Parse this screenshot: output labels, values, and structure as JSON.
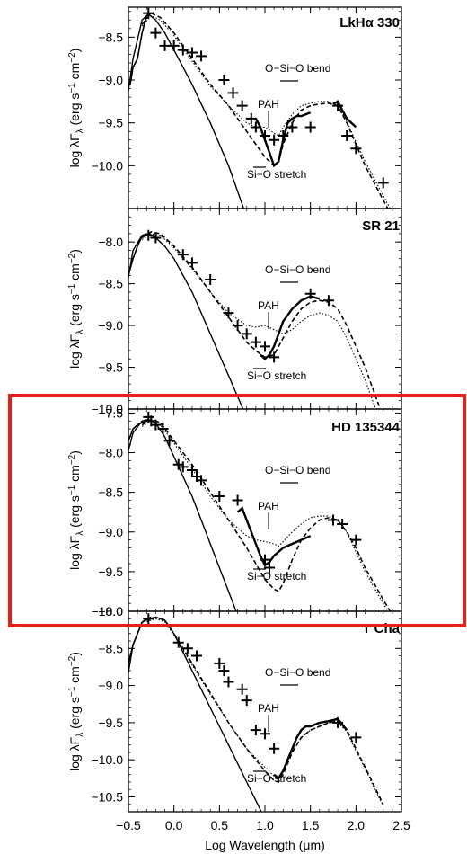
{
  "figure": {
    "x_axis_label": "Log Wavelength (μm)",
    "y_axis_label": "log λF",
    "y_axis_label_sub": "λ",
    "y_axis_label_units": "(erg s",
    "y_axis_label_units2": "cm",
    "y_axis_label_close": ")",
    "highlight_color": "#e8201c"
  },
  "chart_data": [
    {
      "type": "line",
      "title": "LkHα 330",
      "xlim": [
        -0.5,
        2.5
      ],
      "ylim": [
        -10.5,
        -8.15
      ],
      "yticks": [
        "-8.5",
        "-9.0",
        "-9.5",
        "-10.0"
      ],
      "annotations": [
        "O−Si−O bend",
        "PAH",
        "Si−O stretch"
      ],
      "stellar_photosphere": {
        "x": [
          -0.55,
          -0.45,
          -0.35,
          -0.28,
          -0.2,
          -0.1,
          0.0,
          0.1,
          0.2,
          0.3,
          0.4,
          0.5,
          0.6,
          0.7,
          0.8,
          0.9
        ],
        "y": [
          -9.5,
          -8.75,
          -8.3,
          -8.23,
          -8.3,
          -8.45,
          -8.65,
          -8.85,
          -9.05,
          -9.28,
          -9.5,
          -9.75,
          -10.0,
          -10.3,
          -10.6,
          -10.9
        ]
      },
      "spectrum": {
        "x": [
          -0.55,
          -0.52,
          -0.48,
          -0.45,
          -0.4,
          -0.35,
          -0.3,
          -0.25
        ],
        "y": [
          -9.4,
          -9.05,
          -9.05,
          -8.85,
          -8.75,
          -8.45,
          -8.25,
          -8.22
        ]
      },
      "irs_spectrum": {
        "x": [
          0.9,
          0.95,
          1.0,
          1.05,
          1.1,
          1.15,
          1.2,
          1.25,
          1.3,
          1.35,
          1.4,
          1.45,
          1.5
        ],
        "y": [
          -9.45,
          -9.55,
          -9.7,
          -9.85,
          -10.0,
          -9.95,
          -9.7,
          -9.5,
          -9.45,
          -9.42,
          -9.42,
          -9.4,
          -9.38
        ]
      },
      "irs_spectrum_long": {
        "x": [
          1.75,
          1.8,
          1.85,
          1.9,
          1.95,
          2.0
        ],
        "y": [
          -9.28,
          -9.25,
          -9.35,
          -9.45,
          -9.5,
          -9.55
        ]
      },
      "model_dashed": {
        "x": [
          -0.35,
          -0.25,
          -0.15,
          0.0,
          0.2,
          0.4,
          0.6,
          0.8,
          0.9,
          1.0,
          1.1,
          1.15,
          1.2,
          1.3,
          1.4,
          1.5,
          1.6,
          1.7,
          1.8,
          1.9,
          2.0,
          2.1,
          2.2,
          2.3,
          2.4
        ],
        "y": [
          -8.35,
          -8.22,
          -8.27,
          -8.45,
          -8.75,
          -9.05,
          -9.3,
          -9.6,
          -9.75,
          -9.9,
          -10.0,
          -9.95,
          -9.75,
          -9.5,
          -9.35,
          -9.3,
          -9.28,
          -9.27,
          -9.3,
          -9.5,
          -9.75,
          -10.0,
          -10.2,
          -10.4,
          -10.6
        ]
      },
      "model_dotted": {
        "x": [
          -0.35,
          -0.25,
          -0.15,
          0.0,
          0.2,
          0.4,
          0.6,
          0.8,
          0.9,
          1.0,
          1.1,
          1.15,
          1.2,
          1.3,
          1.4,
          1.5,
          1.6,
          1.7,
          1.8,
          1.9,
          2.0,
          2.1,
          2.2,
          2.3,
          2.4
        ],
        "y": [
          -8.37,
          -8.25,
          -8.3,
          -8.48,
          -8.78,
          -9.07,
          -9.3,
          -9.5,
          -9.55,
          -9.55,
          -9.62,
          -9.65,
          -9.55,
          -9.4,
          -9.3,
          -9.27,
          -9.25,
          -9.25,
          -9.3,
          -9.48,
          -9.72,
          -9.95,
          -10.15,
          -10.35,
          -10.55
        ]
      },
      "photometry": {
        "x": [
          -0.28,
          -0.2,
          -0.1,
          0.0,
          0.1,
          0.2,
          0.3,
          0.55,
          0.65,
          0.75,
          0.85,
          0.9,
          1.0,
          1.1,
          1.2,
          1.3,
          1.5,
          1.8,
          1.9,
          2.0,
          2.3
        ],
        "y": [
          -8.22,
          -8.45,
          -8.6,
          -8.6,
          -8.65,
          -8.68,
          -8.72,
          -9.0,
          -9.15,
          -9.3,
          -9.45,
          -9.55,
          -9.65,
          -9.7,
          -9.65,
          -9.55,
          -9.55,
          -9.3,
          -9.65,
          -9.8,
          -10.2
        ]
      }
    },
    {
      "type": "line",
      "title": "SR 21",
      "xlim": [
        -0.5,
        2.5
      ],
      "ylim": [
        -10.0,
        -7.6
      ],
      "yticks": [
        "-8.0",
        "-8.5",
        "-9.0",
        "-9.5",
        "-10.0"
      ],
      "annotations": [
        "O−Si−O bend",
        "PAH",
        "Si−O stretch"
      ],
      "stellar_photosphere": {
        "x": [
          -0.55,
          -0.45,
          -0.35,
          -0.28,
          -0.2,
          -0.1,
          0.0,
          0.1,
          0.2,
          0.3,
          0.4,
          0.5,
          0.6,
          0.7,
          0.8,
          0.9
        ],
        "y": [
          -8.75,
          -8.1,
          -7.92,
          -7.9,
          -7.95,
          -8.05,
          -8.2,
          -8.4,
          -8.6,
          -8.85,
          -9.1,
          -9.35,
          -9.6,
          -9.85,
          -10.1,
          -10.4
        ]
      },
      "spectrum": {
        "x": [
          -0.55,
          -0.5,
          -0.45,
          -0.4,
          -0.35,
          -0.3
        ],
        "y": [
          -8.6,
          -8.4,
          -8.2,
          -8.05,
          -7.93,
          -7.9
        ]
      },
      "irs_spectrum": {
        "x": [
          0.95,
          1.0,
          1.05,
          1.1,
          1.15,
          1.2,
          1.3,
          1.4,
          1.5,
          1.6
        ],
        "y": [
          -9.35,
          -9.4,
          -9.35,
          -9.25,
          -9.1,
          -8.95,
          -8.8,
          -8.7,
          -8.65,
          -8.68
        ]
      },
      "irs_spectrum_long": {
        "x": [],
        "y": []
      },
      "model_dashed": {
        "x": [
          -0.35,
          -0.25,
          -0.15,
          0.0,
          0.2,
          0.4,
          0.6,
          0.8,
          0.9,
          1.0,
          1.1,
          1.2,
          1.3,
          1.4,
          1.5,
          1.6,
          1.7,
          1.8,
          1.9,
          2.0,
          2.1,
          2.2,
          2.3
        ],
        "y": [
          -7.95,
          -7.88,
          -7.9,
          -8.05,
          -8.3,
          -8.6,
          -8.9,
          -9.2,
          -9.3,
          -9.38,
          -9.35,
          -9.15,
          -8.95,
          -8.8,
          -8.72,
          -8.7,
          -8.72,
          -8.8,
          -9.0,
          -9.25,
          -9.5,
          -9.8,
          -10.1
        ]
      },
      "model_dotted": {
        "x": [
          -0.35,
          -0.25,
          -0.15,
          0.0,
          0.2,
          0.4,
          0.6,
          0.8,
          0.9,
          1.0,
          1.1,
          1.2,
          1.3,
          1.4,
          1.5,
          1.6,
          1.7,
          1.8,
          1.9,
          2.0,
          2.1,
          2.2,
          2.3
        ],
        "y": [
          -7.97,
          -7.9,
          -7.92,
          -8.07,
          -8.32,
          -8.6,
          -8.85,
          -9.0,
          -9.02,
          -9.0,
          -9.05,
          -9.1,
          -9.05,
          -8.95,
          -8.88,
          -8.85,
          -8.88,
          -8.95,
          -9.15,
          -9.4,
          -9.65,
          -9.95,
          -10.2
        ]
      },
      "photometry": {
        "x": [
          -0.28,
          -0.2,
          0.1,
          0.2,
          0.4,
          0.6,
          0.7,
          0.8,
          0.9,
          1.0,
          1.1,
          1.5,
          1.7
        ],
        "y": [
          -7.92,
          -7.95,
          -8.15,
          -8.25,
          -8.45,
          -8.85,
          -9.0,
          -9.1,
          -9.2,
          -9.25,
          -9.38,
          -8.62,
          -8.7
        ]
      }
    },
    {
      "type": "line",
      "title": "HD 135344",
      "xlim": [
        -0.5,
        2.5
      ],
      "ylim": [
        -10.0,
        -7.45
      ],
      "yticks": [
        "-7.5",
        "-8.0",
        "-8.5",
        "-9.0",
        "-9.5",
        "-10.0"
      ],
      "annotations": [
        "O−Si−O bend",
        "PAH",
        "Si−O stretch"
      ],
      "stellar_photosphere": {
        "x": [
          -0.55,
          -0.45,
          -0.35,
          -0.28,
          -0.2,
          -0.1,
          0.0,
          0.1,
          0.2,
          0.3,
          0.4,
          0.5,
          0.6,
          0.7,
          0.8
        ],
        "y": [
          -8.2,
          -7.75,
          -7.6,
          -7.58,
          -7.63,
          -7.8,
          -8.05,
          -8.3,
          -8.55,
          -8.85,
          -9.15,
          -9.45,
          -9.75,
          -10.05,
          -10.4
        ]
      },
      "spectrum": {
        "x": [
          -0.55,
          -0.5,
          -0.45,
          -0.4,
          -0.35,
          -0.3
        ],
        "y": [
          -8.05,
          -7.85,
          -7.7,
          -7.65,
          -7.62,
          -7.6
        ]
      },
      "irs_spectrum": {
        "x": [
          0.7,
          0.75,
          0.8,
          0.85,
          0.9,
          0.95,
          1.0,
          1.05,
          1.1,
          1.15,
          1.2,
          1.3,
          1.4,
          1.5
        ],
        "y": [
          -8.75,
          -8.7,
          -8.85,
          -9.0,
          -9.15,
          -9.3,
          -9.42,
          -9.38,
          -9.3,
          -9.25,
          -9.2,
          -9.15,
          -9.1,
          -9.05
        ]
      },
      "irs_spectrum_long": {
        "x": [],
        "y": []
      },
      "model_dashed": {
        "x": [
          -0.35,
          -0.25,
          -0.15,
          0.0,
          0.2,
          0.4,
          0.6,
          0.8,
          0.9,
          1.0,
          1.1,
          1.15,
          1.2,
          1.3,
          1.4,
          1.5,
          1.6,
          1.7,
          1.8,
          1.9,
          2.0,
          2.1,
          2.2,
          2.3,
          2.4
        ],
        "y": [
          -7.65,
          -7.58,
          -7.62,
          -7.85,
          -8.15,
          -8.5,
          -8.85,
          -9.2,
          -9.4,
          -9.6,
          -9.72,
          -9.75,
          -9.65,
          -9.35,
          -9.1,
          -8.95,
          -8.85,
          -8.82,
          -8.85,
          -9.0,
          -9.2,
          -9.45,
          -9.65,
          -9.85,
          -10.05
        ]
      },
      "model_dotted": {
        "x": [
          -0.35,
          -0.25,
          -0.15,
          0.0,
          0.2,
          0.4,
          0.6,
          0.8,
          0.9,
          1.0,
          1.1,
          1.15,
          1.2,
          1.3,
          1.4,
          1.5,
          1.6,
          1.7,
          1.8,
          1.9,
          2.0,
          2.1,
          2.2,
          2.3,
          2.4
        ],
        "y": [
          -7.67,
          -7.6,
          -7.65,
          -7.88,
          -8.2,
          -8.55,
          -8.85,
          -9.05,
          -9.1,
          -9.12,
          -9.15,
          -9.18,
          -9.12,
          -9.0,
          -8.9,
          -8.82,
          -8.8,
          -8.8,
          -8.85,
          -9.0,
          -9.25,
          -9.5,
          -9.7,
          -9.9,
          -10.1
        ]
      },
      "photometry": {
        "x": [
          -0.28,
          -0.25,
          -0.2,
          -0.12,
          -0.05,
          0.05,
          0.1,
          0.2,
          0.25,
          0.3,
          0.5,
          0.7,
          1.0,
          1.05,
          1.75,
          1.85,
          2.0
        ],
        "y": [
          -7.55,
          -7.6,
          -7.65,
          -7.7,
          -7.85,
          -8.15,
          -8.18,
          -8.22,
          -8.3,
          -8.35,
          -8.55,
          -8.6,
          -9.35,
          -9.45,
          -8.85,
          -8.9,
          -9.1
        ]
      }
    },
    {
      "type": "line",
      "title": "T Cha",
      "xlim": [
        -0.5,
        2.5
      ],
      "ylim": [
        -10.7,
        -8.0
      ],
      "yticks": [
        "-8.0",
        "-8.5",
        "-9.0",
        "-9.5",
        "-10.0",
        "-10.5"
      ],
      "annotations": [
        "O−Si−O bend",
        "PAH",
        "Si−O stretch"
      ],
      "stellar_photosphere": {
        "x": [
          -0.55,
          -0.45,
          -0.35,
          -0.28,
          -0.2,
          -0.1,
          0.0,
          0.1,
          0.2,
          0.3,
          0.4,
          0.5,
          0.6,
          0.7,
          0.8,
          0.9,
          1.0,
          1.05
        ],
        "y": [
          -9.2,
          -8.45,
          -8.15,
          -8.1,
          -8.08,
          -8.12,
          -8.3,
          -8.55,
          -8.8,
          -9.05,
          -9.3,
          -9.55,
          -9.8,
          -10.05,
          -10.3,
          -10.55,
          -10.8,
          -10.95
        ]
      },
      "spectrum": {
        "x": [
          -0.55,
          -0.5,
          -0.45,
          -0.4,
          -0.35,
          -0.3,
          -0.25
        ],
        "y": [
          -9.0,
          -8.7,
          -8.45,
          -8.3,
          -8.15,
          -8.1,
          -8.08
        ]
      },
      "irs_spectrum": {
        "x": [
          1.1,
          1.15,
          1.2,
          1.25,
          1.3,
          1.35,
          1.4,
          1.45,
          1.5,
          1.6,
          1.7,
          1.8,
          1.9
        ],
        "y": [
          -10.2,
          -10.25,
          -10.15,
          -10.0,
          -9.85,
          -9.7,
          -9.6,
          -9.55,
          -9.55,
          -9.5,
          -9.48,
          -9.45,
          -9.6
        ]
      },
      "irs_spectrum_long": {
        "x": [],
        "y": []
      },
      "model_dashed": {
        "x": [
          -0.3,
          -0.2,
          -0.1,
          0.0,
          0.2,
          0.4,
          0.6,
          0.8,
          1.0,
          1.1,
          1.15,
          1.2,
          1.3,
          1.4,
          1.5,
          1.6,
          1.7,
          1.8,
          1.9,
          2.0,
          2.1,
          2.2,
          2.3
        ],
        "y": [
          -8.12,
          -8.08,
          -8.12,
          -8.3,
          -8.7,
          -9.1,
          -9.5,
          -9.85,
          -10.15,
          -10.28,
          -10.3,
          -10.2,
          -9.9,
          -9.7,
          -9.6,
          -9.55,
          -9.5,
          -9.48,
          -9.6,
          -9.85,
          -10.1,
          -10.35,
          -10.6
        ]
      },
      "model_dotted": {
        "x": [
          -0.3,
          -0.2,
          -0.1,
          0.0,
          0.2,
          0.4,
          0.6,
          0.8,
          1.0,
          1.1,
          1.15,
          1.2,
          1.3,
          1.4,
          1.5,
          1.6,
          1.7,
          1.8,
          1.9,
          2.0,
          2.1,
          2.2,
          2.3
        ],
        "y": [
          -8.14,
          -8.1,
          -8.14,
          -8.32,
          -8.72,
          -9.12,
          -9.5,
          -9.85,
          -10.1,
          -10.22,
          -10.25,
          -10.15,
          -9.88,
          -9.7,
          -9.6,
          -9.55,
          -9.5,
          -9.5,
          -9.62,
          -9.88,
          -10.12,
          -10.38,
          -10.62
        ]
      },
      "photometry": {
        "x": [
          -0.28,
          0.05,
          0.15,
          0.25,
          0.5,
          0.55,
          0.6,
          0.75,
          0.8,
          0.9,
          1.0,
          1.1,
          1.8,
          2.0
        ],
        "y": [
          -8.1,
          -8.42,
          -8.5,
          -8.6,
          -8.7,
          -8.8,
          -8.95,
          -9.05,
          -9.2,
          -9.6,
          -9.65,
          -9.85,
          -9.5,
          -9.7
        ]
      }
    }
  ]
}
